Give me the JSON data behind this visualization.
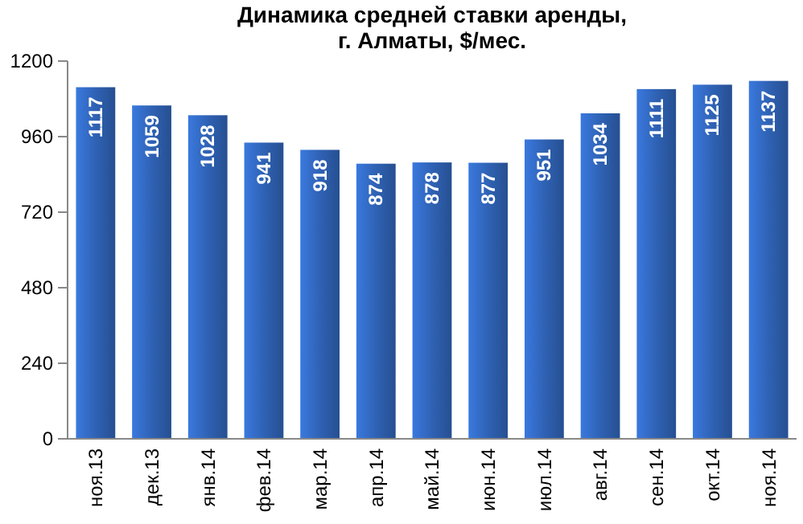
{
  "chart_data": {
    "type": "bar",
    "title": "Динамика средней ставки аренды,\nг. Алматы, $/мес.",
    "categories": [
      "ноя.13",
      "дек.13",
      "янв.14",
      "фев.14",
      "мар.14",
      "апр.14",
      "май.14",
      "июн.14",
      "июл.14",
      "авг.14",
      "сен.14",
      "окт.14",
      "ноя.14"
    ],
    "values": [
      1117,
      1059,
      1028,
      941,
      918,
      874,
      878,
      877,
      951,
      1034,
      1111,
      1125,
      1137
    ],
    "color": "#2f62b4",
    "ylim": [
      0,
      1200
    ],
    "yticks": [
      0,
      240,
      480,
      720,
      960,
      1200
    ],
    "data_labels": true,
    "grid": false
  }
}
